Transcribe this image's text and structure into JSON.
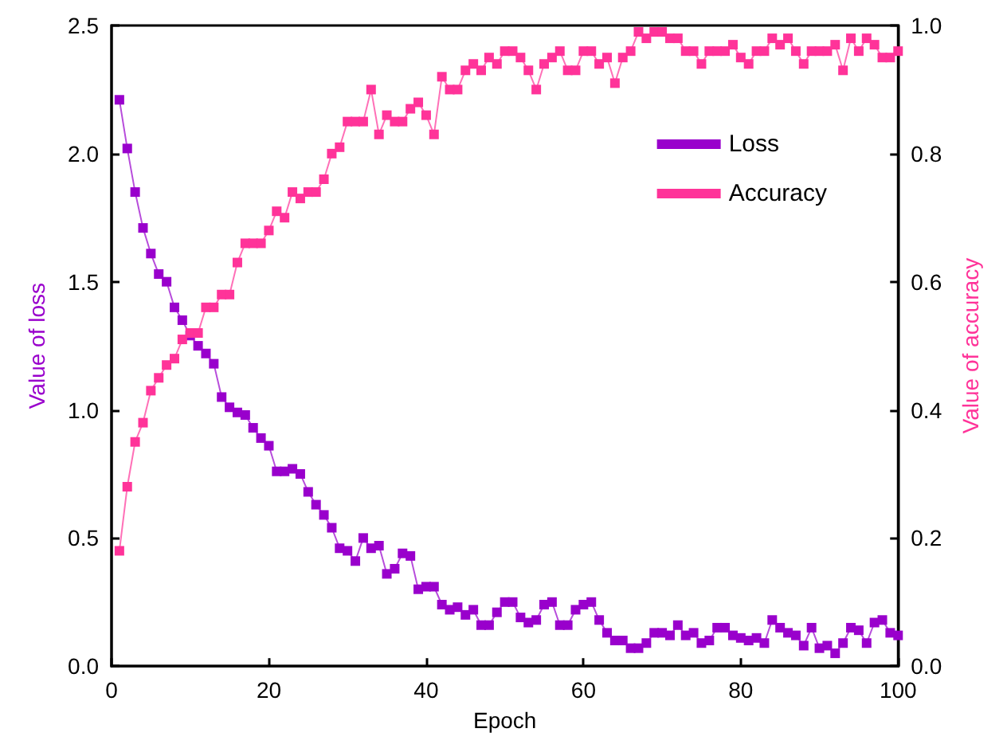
{
  "chart_data": {
    "type": "line",
    "xlabel": "Epoch",
    "ylabel": "Value of loss",
    "y2label": "Value of accuracy",
    "x": [
      1,
      2,
      3,
      4,
      5,
      6,
      7,
      8,
      9,
      10,
      11,
      12,
      13,
      14,
      15,
      16,
      17,
      18,
      19,
      20,
      21,
      22,
      23,
      24,
      25,
      26,
      27,
      28,
      29,
      30,
      31,
      32,
      33,
      34,
      35,
      36,
      37,
      38,
      39,
      40,
      41,
      42,
      43,
      44,
      45,
      46,
      47,
      48,
      49,
      50,
      51,
      52,
      53,
      54,
      55,
      56,
      57,
      58,
      59,
      60,
      61,
      62,
      63,
      64,
      65,
      66,
      67,
      68,
      69,
      70,
      71,
      72,
      73,
      74,
      75,
      76,
      77,
      78,
      79,
      80,
      81,
      82,
      83,
      84,
      85,
      86,
      87,
      88,
      89,
      90,
      91,
      92,
      93,
      94,
      95,
      96,
      97,
      98,
      99,
      100
    ],
    "series": [
      {
        "name": "Loss",
        "color": "#9900cc",
        "values": [
          2.21,
          2.02,
          1.85,
          1.71,
          1.61,
          1.53,
          1.5,
          1.4,
          1.35,
          1.29,
          1.25,
          1.22,
          1.18,
          1.05,
          1.01,
          0.99,
          0.98,
          0.93,
          0.89,
          0.86,
          0.76,
          0.76,
          0.77,
          0.75,
          0.68,
          0.63,
          0.59,
          0.54,
          0.46,
          0.45,
          0.41,
          0.5,
          0.46,
          0.47,
          0.36,
          0.38,
          0.44,
          0.43,
          0.3,
          0.31,
          0.31,
          0.24,
          0.22,
          0.23,
          0.2,
          0.22,
          0.16,
          0.16,
          0.21,
          0.25,
          0.25,
          0.19,
          0.17,
          0.18,
          0.24,
          0.25,
          0.16,
          0.16,
          0.22,
          0.24,
          0.25,
          0.18,
          0.13,
          0.1,
          0.1,
          0.07,
          0.07,
          0.09,
          0.13,
          0.13,
          0.12,
          0.16,
          0.12,
          0.13,
          0.09,
          0.1,
          0.15,
          0.15,
          0.12,
          0.11,
          0.1,
          0.11,
          0.09,
          0.18,
          0.15,
          0.13,
          0.12,
          0.08,
          0.15,
          0.07,
          0.08,
          0.05,
          0.09,
          0.15,
          0.14,
          0.09,
          0.17,
          0.18,
          0.13,
          0.12
        ]
      },
      {
        "name": "Accuracy",
        "color": "#ff3399",
        "axis": "y2",
        "values": [
          0.18,
          0.28,
          0.35,
          0.38,
          0.43,
          0.45,
          0.47,
          0.48,
          0.51,
          0.52,
          0.52,
          0.56,
          0.56,
          0.58,
          0.58,
          0.63,
          0.66,
          0.66,
          0.66,
          0.68,
          0.71,
          0.7,
          0.74,
          0.73,
          0.74,
          0.74,
          0.76,
          0.8,
          0.81,
          0.85,
          0.85,
          0.85,
          0.9,
          0.83,
          0.86,
          0.85,
          0.85,
          0.87,
          0.88,
          0.86,
          0.83,
          0.92,
          0.9,
          0.9,
          0.93,
          0.94,
          0.93,
          0.95,
          0.94,
          0.96,
          0.96,
          0.95,
          0.93,
          0.9,
          0.94,
          0.95,
          0.96,
          0.93,
          0.93,
          0.96,
          0.96,
          0.94,
          0.95,
          0.91,
          0.95,
          0.96,
          0.99,
          0.98,
          0.99,
          0.99,
          0.98,
          0.98,
          0.96,
          0.96,
          0.94,
          0.96,
          0.96,
          0.96,
          0.97,
          0.95,
          0.94,
          0.96,
          0.96,
          0.98,
          0.97,
          0.98,
          0.96,
          0.94,
          0.96,
          0.96,
          0.96,
          0.97,
          0.93,
          0.98,
          0.96,
          0.98,
          0.97,
          0.95,
          0.95,
          0.96
        ]
      }
    ],
    "xlim": [
      0,
      100
    ],
    "xticks": [
      0,
      20,
      40,
      60,
      80,
      100
    ],
    "ylim": [
      0,
      2.5
    ],
    "yticks": [
      {
        "value": 0,
        "label": "0.0"
      },
      {
        "value": 0.5,
        "label": "0.5"
      },
      {
        "value": 1,
        "label": "1.0"
      },
      {
        "value": 1.5,
        "label": "1.5"
      },
      {
        "value": 2,
        "label": "2.0"
      },
      {
        "value": 2.5,
        "label": "2.5"
      }
    ],
    "y2lim": [
      0,
      1
    ],
    "y2ticks": [
      {
        "value": 0,
        "label": "0.0"
      },
      {
        "value": 0.2,
        "label": "0.2"
      },
      {
        "value": 0.4,
        "label": "0.4"
      },
      {
        "value": 0.6,
        "label": "0.6"
      },
      {
        "value": 0.8,
        "label": "0.8"
      },
      {
        "value": 1,
        "label": "1.0"
      }
    ],
    "legend": "top right",
    "grid": false,
    "marker": "square",
    "line_style": "solid"
  }
}
